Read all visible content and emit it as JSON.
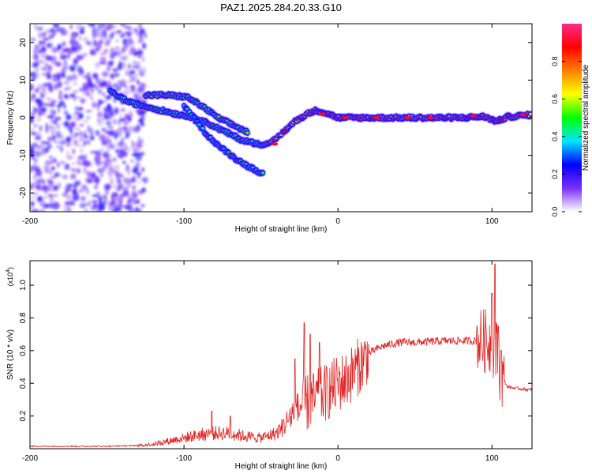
{
  "title": "PAZ1.2025.284.20.33.G10",
  "chart_data": [
    {
      "type": "heatmap",
      "title": "PAZ1.2025.284.20.33.G10",
      "xlabel": "Height of straight line (km)",
      "ylabel": "Frequency (Hz)",
      "xlim": [
        -200,
        126
      ],
      "ylim": [
        -25,
        25
      ],
      "x_ticks": [
        -200,
        -100,
        0,
        100
      ],
      "x_tick_labels": [
        "-200",
        "-100",
        "0",
        "100"
      ],
      "y_ticks": [
        20,
        10,
        0,
        -10,
        -20
      ],
      "y_tick_labels": [
        "20",
        "10",
        "0",
        "-10",
        "-20"
      ],
      "colorbar": {
        "label": "Normalized spectral amplitude",
        "range": [
          0,
          1
        ],
        "ticks": [
          0.0,
          0.2,
          0.4,
          0.6,
          0.8
        ],
        "tick_labels": [
          "0.0",
          "0.2",
          "0.4",
          "0.6",
          "0.8"
        ],
        "colormap": [
          "#ffffff",
          "#7b2ff7",
          "#0000ff",
          "#00e5ff",
          "#00ff00",
          "#ffff00",
          "#ff8000",
          "#ff0000",
          "#ff2a8a"
        ]
      },
      "noise_region": {
        "x": [
          -200,
          -125
        ],
        "f": [
          -25,
          25
        ],
        "amplitude": [
          0.05,
          0.25
        ]
      },
      "tracks": [
        {
          "points": [
            [
              -148,
              7
            ],
            [
              -135,
              4
            ],
            [
              -120,
              2.5
            ],
            [
              -105,
              1
            ],
            [
              -92,
              0
            ],
            [
              -82,
              -2
            ],
            [
              -72,
              -4
            ],
            [
              -62,
              -6
            ],
            [
              -52,
              -7
            ],
            [
              -44,
              -7
            ]
          ],
          "amplitude": [
            0.35,
            0.55
          ]
        },
        {
          "points": [
            [
              -125,
              6
            ],
            [
              -110,
              6
            ],
            [
              -98,
              5.5
            ],
            [
              -88,
              3
            ],
            [
              -78,
              0
            ],
            [
              -68,
              -2
            ],
            [
              -58,
              -4
            ]
          ],
          "amplitude": [
            0.35,
            0.6
          ]
        },
        {
          "points": [
            [
              -100,
              3
            ],
            [
              -92,
              -1
            ],
            [
              -84,
              -5
            ],
            [
              -76,
              -8
            ],
            [
              -66,
              -11
            ],
            [
              -58,
              -13
            ],
            [
              -48,
              -15
            ]
          ],
          "amplitude": [
            0.3,
            0.5
          ]
        },
        {
          "points": [
            [
              -44,
              -7
            ],
            [
              -36,
              -4
            ],
            [
              -28,
              -1
            ],
            [
              -20,
              1
            ],
            [
              -14,
              2
            ],
            [
              -6,
              1
            ],
            [
              0,
              0
            ],
            [
              20,
              0
            ],
            [
              40,
              0
            ],
            [
              60,
              0
            ],
            [
              80,
              0
            ],
            [
              95,
              0.3
            ],
            [
              103,
              -1
            ],
            [
              110,
              0.2
            ],
            [
              126,
              0.8
            ]
          ],
          "amplitude": [
            0.6,
            0.95
          ]
        }
      ],
      "max_markers": [
        [
          -41,
          -7
        ],
        [
          -10,
          1
        ],
        [
          5,
          0
        ],
        [
          25,
          0
        ],
        [
          45,
          0
        ],
        [
          60,
          0
        ],
        [
          88,
          0.5
        ],
        [
          120,
          0.8
        ]
      ]
    },
    {
      "type": "line",
      "xlabel": "Height of straight line (km)",
      "ylabel": "SNR (10 * v/v)",
      "y_scale_label": "(x10",
      "y_scale_exponent": "4",
      "y_scale_suffix": ")",
      "xlim": [
        -200,
        126
      ],
      "ylim": [
        0,
        1.15
      ],
      "x_ticks": [
        -200,
        -100,
        0,
        100
      ],
      "x_tick_labels": [
        "-200",
        "-100",
        "0",
        "100"
      ],
      "y_ticks": [
        0.2,
        0.4,
        0.6,
        0.8,
        1.0
      ],
      "y_tick_labels": [
        "0.2",
        "0.4",
        "0.6",
        "0.8",
        "1.0"
      ],
      "color": "#e32222",
      "envelope": {
        "x": [
          -200,
          -150,
          -130,
          -120,
          -110,
          -100,
          -90,
          -80,
          -70,
          -60,
          -50,
          -40,
          -35,
          -30,
          -25,
          -20,
          -15,
          -10,
          -5,
          0,
          5,
          10,
          15,
          20,
          25,
          30,
          40,
          50,
          60,
          70,
          80,
          90,
          95,
          100,
          103,
          106,
          110,
          115,
          120,
          126
        ],
        "y": [
          0.015,
          0.015,
          0.02,
          0.03,
          0.05,
          0.07,
          0.09,
          0.1,
          0.1,
          0.08,
          0.07,
          0.1,
          0.15,
          0.22,
          0.26,
          0.28,
          0.3,
          0.33,
          0.36,
          0.4,
          0.42,
          0.47,
          0.52,
          0.58,
          0.61,
          0.63,
          0.65,
          0.65,
          0.655,
          0.66,
          0.66,
          0.66,
          0.66,
          0.65,
          0.6,
          0.45,
          0.38,
          0.37,
          0.365,
          0.36
        ]
      },
      "spikes": [
        [
          -22,
          0.77
        ],
        [
          -18,
          0.7
        ],
        [
          -12,
          0.65
        ],
        [
          -28,
          0.55
        ],
        [
          -82,
          0.23
        ],
        [
          -70,
          0.2
        ],
        [
          102,
          1.13
        ],
        [
          100,
          0.95
        ],
        [
          104,
          0.75
        ],
        [
          106,
          0.6
        ]
      ]
    }
  ]
}
